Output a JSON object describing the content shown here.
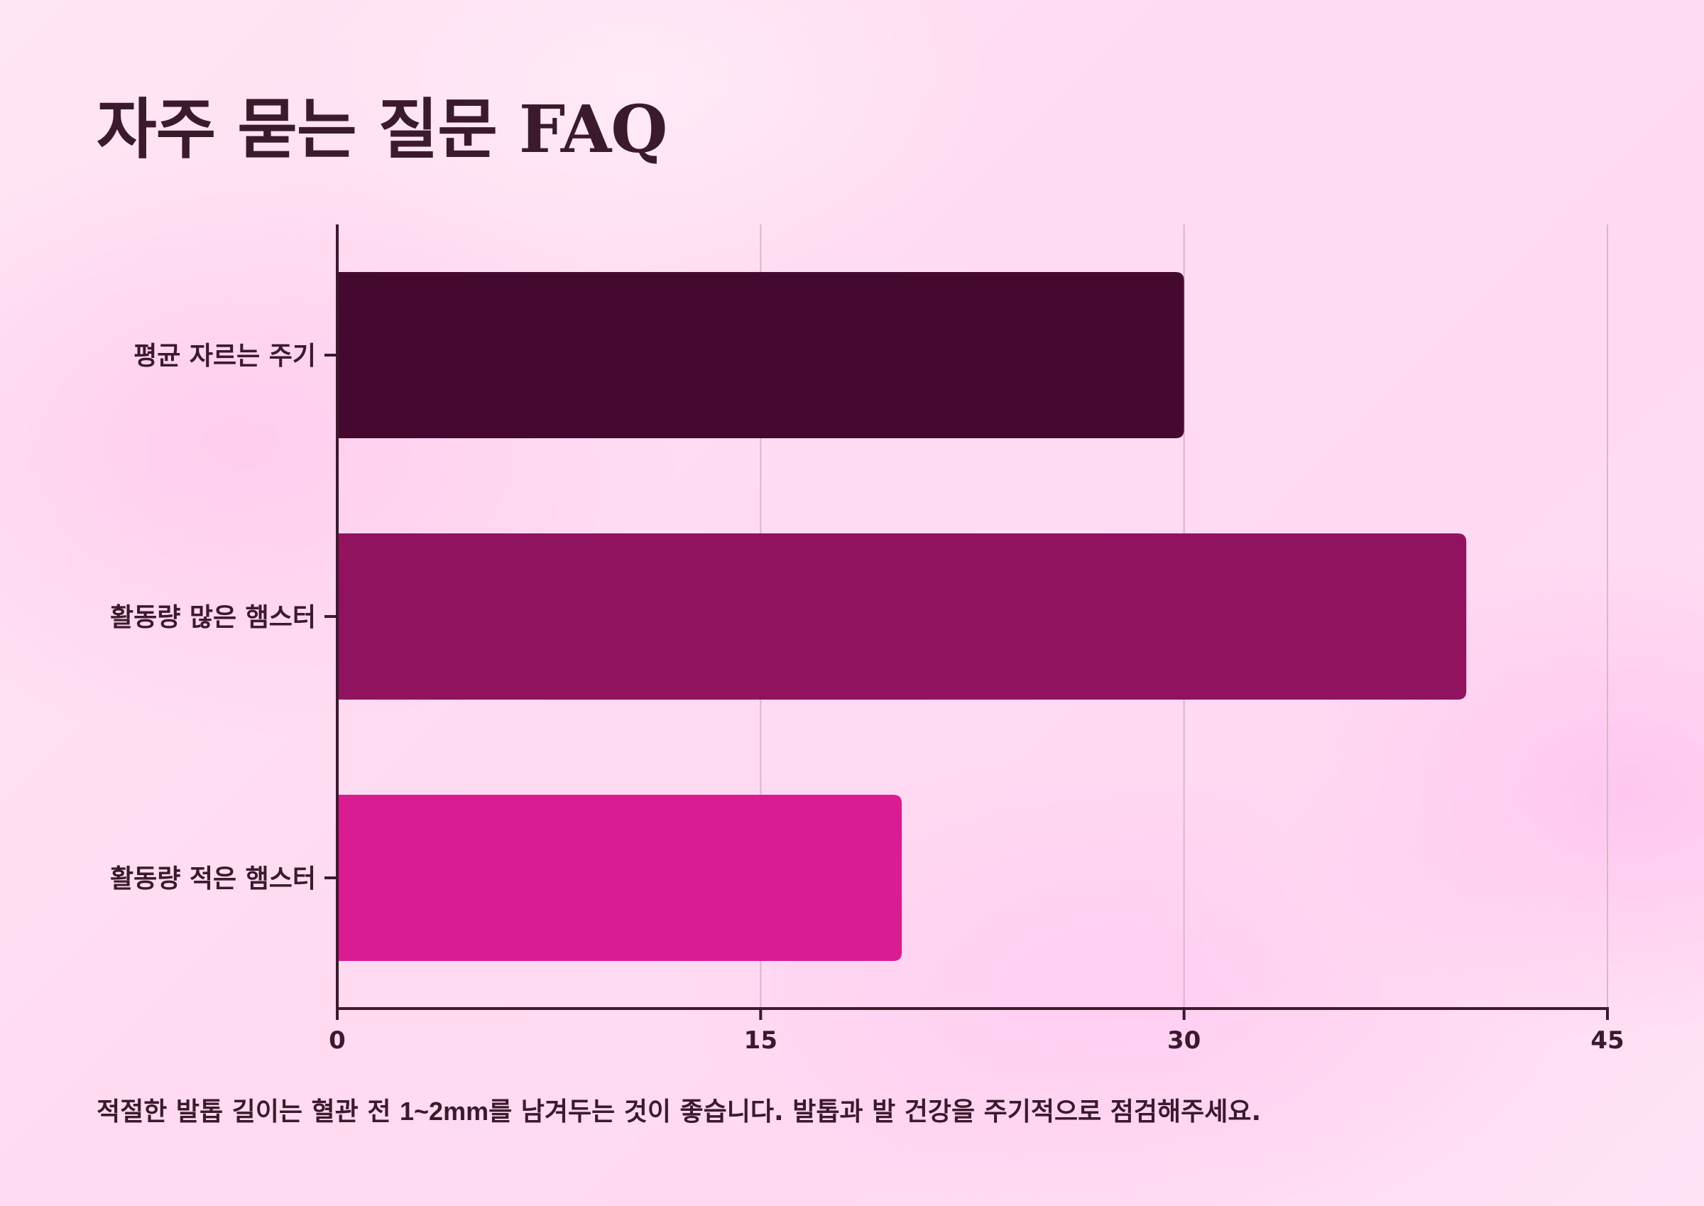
{
  "title": "자주 묻는 질문 FAQ",
  "chart_data": {
    "type": "bar",
    "orientation": "horizontal",
    "categories": [
      "평균 자르는 주기",
      "활동량 많은 햄스터",
      "활동량 적은 햄스터"
    ],
    "values": [
      30,
      40,
      20
    ],
    "colors": [
      "#45092f",
      "#91125f",
      "#da1c93"
    ],
    "xlim": [
      0,
      45
    ],
    "xticks": [
      "0",
      "15",
      "30",
      "45"
    ],
    "grid": "vertical",
    "legend": "none",
    "xlabel": "",
    "ylabel": ""
  },
  "footnote": {
    "before": "적절한 발톱 길이는 혈관 전 ",
    "highlight": "1~2mm",
    "after": "를 남겨두는 것이 좋습니다. 발톱과 발 건강을 주기적으로 점검해주세요."
  }
}
